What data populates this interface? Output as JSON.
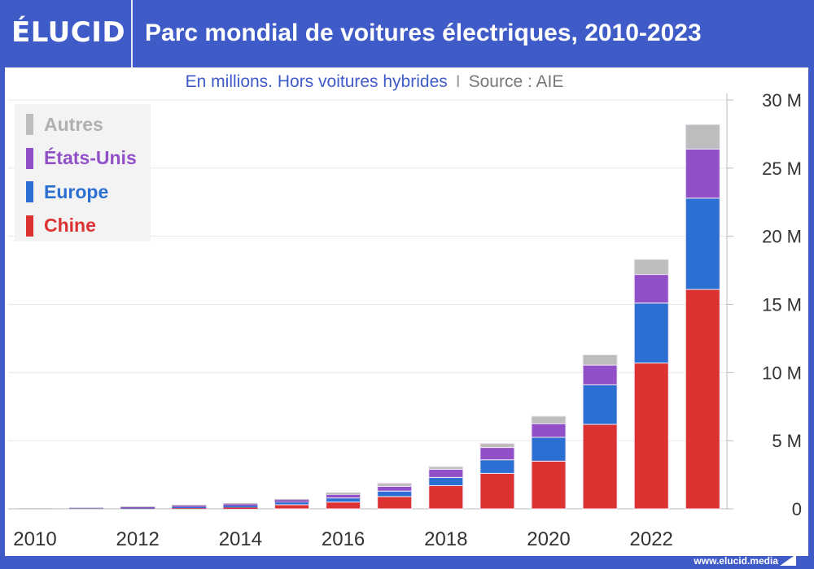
{
  "header": {
    "logo": "ÉLUCID",
    "title": "Parc mondial de voitures électriques, 2010-2023"
  },
  "subtitle": {
    "text": "En millions. Hors voitures hybrides",
    "separator": "I",
    "source": "Source : AIE"
  },
  "footer": {
    "url": "www.elucid.media"
  },
  "chart_data": {
    "type": "bar",
    "stacked": true,
    "title": "Parc mondial de voitures électriques, 2010-2023",
    "subtitle": "En millions. Hors voitures hybrides",
    "xlabel": "",
    "ylabel": "",
    "ylim": [
      0,
      30
    ],
    "y_ticks": [
      0,
      5,
      10,
      15,
      20,
      25,
      30
    ],
    "y_tick_labels": [
      "0",
      "5 M",
      "10 M",
      "15 M",
      "20 M",
      "25 M",
      "30 M"
    ],
    "y_axis_side": "right",
    "x_tick_labels": [
      "2010",
      "2012",
      "2014",
      "2016",
      "2018",
      "2020",
      "2022"
    ],
    "grid": true,
    "legend_placement": "top-left",
    "categories": [
      "2010",
      "2011",
      "2012",
      "2013",
      "2014",
      "2015",
      "2016",
      "2017",
      "2018",
      "2019",
      "2020",
      "2021",
      "2022",
      "2023"
    ],
    "series": [
      {
        "name": "Chine",
        "color": "#dc3232",
        "values": [
          0.0,
          0.01,
          0.02,
          0.05,
          0.1,
          0.3,
          0.5,
          0.9,
          1.7,
          2.6,
          3.5,
          6.2,
          10.7,
          16.1
        ]
      },
      {
        "name": "Europe",
        "color": "#2b6fd3",
        "values": [
          0.01,
          0.02,
          0.04,
          0.08,
          0.12,
          0.2,
          0.3,
          0.4,
          0.6,
          1.0,
          1.75,
          2.9,
          4.4,
          6.7
        ]
      },
      {
        "name": "États-Unis",
        "color": "#9150c8",
        "values": [
          0.0,
          0.02,
          0.07,
          0.1,
          0.12,
          0.15,
          0.25,
          0.35,
          0.6,
          0.9,
          1.0,
          1.45,
          2.1,
          3.6
        ]
      },
      {
        "name": "Autres",
        "color": "#bdbdbd",
        "values": [
          0.03,
          0.05,
          0.05,
          0.07,
          0.08,
          0.07,
          0.15,
          0.24,
          0.2,
          0.3,
          0.55,
          0.75,
          1.1,
          1.8
        ]
      }
    ]
  }
}
